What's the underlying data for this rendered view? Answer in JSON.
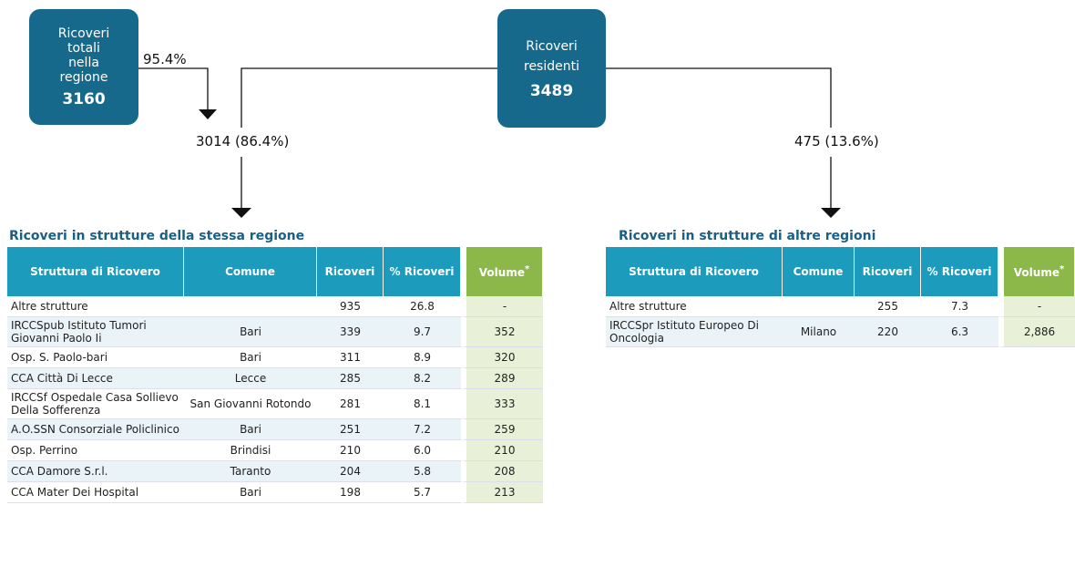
{
  "flow": {
    "box_total": {
      "label": "Ricoveri totali nella regione",
      "value": "3160"
    },
    "box_residents": {
      "label": "Ricoveri residenti",
      "value": "3489"
    },
    "share_total": "95.4%",
    "same_region": "3014 (86.4%)",
    "other_regions": "475 (13.6%)"
  },
  "tables": [
    {
      "title": "Ricoveri in strutture della stessa regione",
      "headers": [
        "Struttura di Ricovero",
        "Comune",
        "Ricoveri",
        "% Ricoveri",
        "Volume"
      ],
      "header_note": "*",
      "rows": [
        [
          "Altre strutture",
          "",
          "935",
          "26.8",
          "-"
        ],
        [
          "IRCCSpub Istituto Tumori Giovanni Paolo Ii",
          "Bari",
          "339",
          "9.7",
          "352"
        ],
        [
          "Osp. S. Paolo-bari",
          "Bari",
          "311",
          "8.9",
          "320"
        ],
        [
          "CCA Città Di Lecce",
          "Lecce",
          "285",
          "8.2",
          "289"
        ],
        [
          "IRCCSf Ospedale Casa Sollievo Della Sofferenza",
          "San Giovanni Rotondo",
          "281",
          "8.1",
          "333"
        ],
        [
          "A.O.SSN Consorziale Policlinico",
          "Bari",
          "251",
          "7.2",
          "259"
        ],
        [
          "Osp. Perrino",
          "Brindisi",
          "210",
          "6.0",
          "210"
        ],
        [
          "CCA Damore S.r.l.",
          "Taranto",
          "204",
          "5.8",
          "208"
        ],
        [
          "CCA Mater Dei Hospital",
          "Bari",
          "198",
          "5.7",
          "213"
        ]
      ]
    },
    {
      "title": "Ricoveri in strutture di altre regioni",
      "headers": [
        "Struttura di Ricovero",
        "Comune",
        "Ricoveri",
        "% Ricoveri",
        "Volume"
      ],
      "header_note": "*",
      "rows": [
        [
          "Altre strutture",
          "",
          "255",
          "7.3",
          "-"
        ],
        [
          "IRCCSpr Istituto Europeo Di Oncologia",
          "Milano",
          "220",
          "6.3",
          "2,886"
        ]
      ]
    }
  ]
}
